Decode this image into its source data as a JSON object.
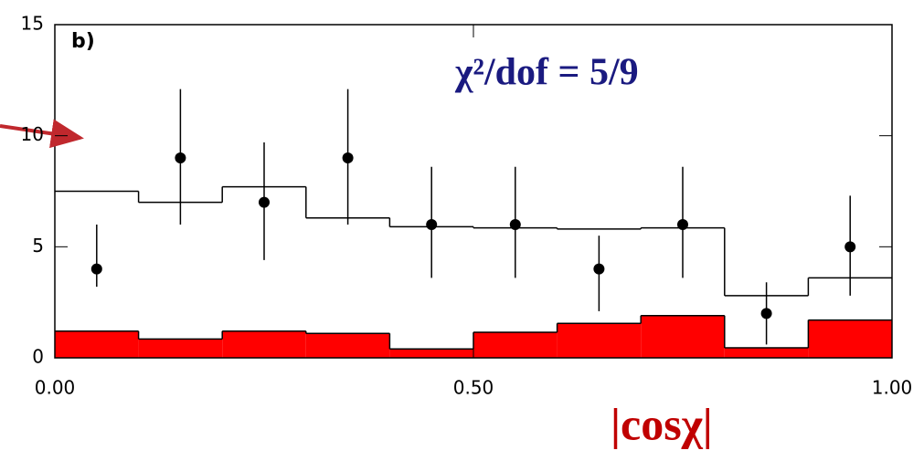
{
  "chart_data": {
    "type": "histogram",
    "panel_label": "b)",
    "annotation": "χ²/dof = 5/9",
    "xlabel": "|cosχ|",
    "bins": [
      0,
      0.1,
      0.2,
      0.3,
      0.4,
      0.5,
      0.6,
      0.7,
      0.8,
      0.9,
      1.0
    ],
    "values": [
      4,
      9,
      7,
      9,
      6,
      6,
      4,
      6,
      2,
      5
    ],
    "err_minus": [
      0.8,
      3.0,
      2.6,
      3.0,
      2.4,
      2.4,
      1.9,
      2.4,
      1.4,
      2.2
    ],
    "err_plus": [
      2.0,
      3.1,
      2.7,
      3.1,
      2.6,
      2.6,
      1.5,
      2.6,
      1.4,
      2.3
    ],
    "fit_values": [
      7.5,
      7.0,
      7.7,
      6.3,
      5.9,
      5.85,
      5.8,
      5.85,
      2.8,
      3.6
    ],
    "background_values": [
      1.2,
      0.85,
      1.2,
      1.1,
      0.4,
      1.15,
      1.55,
      1.9,
      0.45,
      1.7
    ],
    "point_color": "#000000",
    "fit_color": "#000000",
    "background_color": "#ff0000",
    "annotation_color": "#1a1a80",
    "xlabel_color": "#c00000",
    "xlim": [
      0,
      1.0
    ],
    "ylim": [
      0,
      15
    ],
    "xticks": [
      {
        "value": 0,
        "label": "0.00"
      },
      {
        "value": 0.5,
        "label": "0.50"
      },
      {
        "value": 1.0,
        "label": "1.00"
      }
    ],
    "yticks": [
      0,
      5,
      10,
      15
    ]
  }
}
